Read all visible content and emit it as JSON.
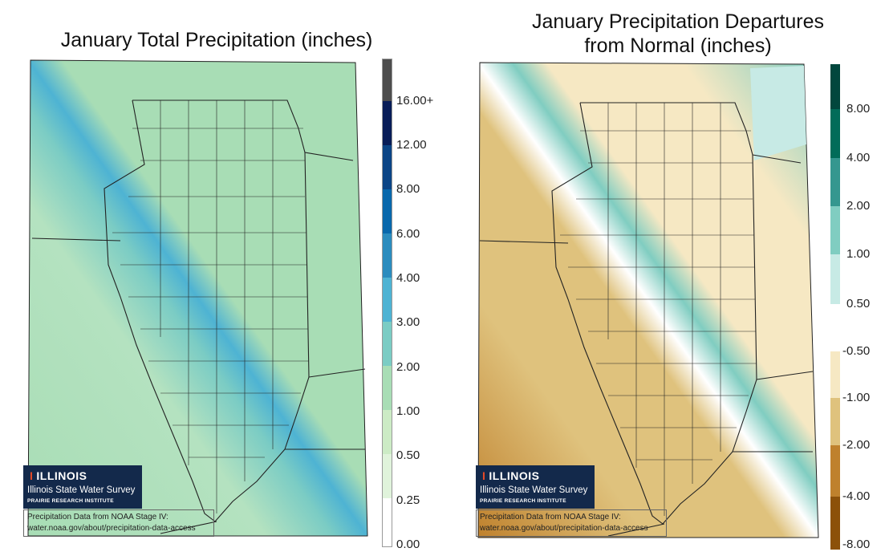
{
  "left_map": {
    "title": "January Total Precipitation (inches)",
    "legend": {
      "labels": [
        "16.00+",
        "12.00",
        "8.00",
        "6.00",
        "4.00",
        "3.00",
        "2.00",
        "1.00",
        "0.50",
        "0.25",
        "0.00"
      ],
      "colors": [
        "#4d4d4d",
        "#081d58",
        "#0b4586",
        "#0868ac",
        "#2b8cbe",
        "#4eb3d3",
        "#7bccc4",
        "#a8ddb5",
        "#ccebc5",
        "#e0f3db",
        "#ffffff"
      ]
    }
  },
  "right_map": {
    "title_line1": "January Precipitation Departures",
    "title_line2": "from Normal (inches)",
    "legend": {
      "labels": [
        "8.00",
        "4.00",
        "2.00",
        "1.00",
        "0.50",
        "-0.50",
        "-1.00",
        "-2.00",
        "-4.00",
        "-8.00"
      ],
      "colors": [
        "#01473d",
        "#016c59",
        "#35978f",
        "#80cdc1",
        "#c7eae5",
        "#ffffff",
        "#f6e8c3",
        "#dfc27d",
        "#bf812d",
        "#8c510a"
      ]
    }
  },
  "logo": {
    "mark": "I",
    "name": "ILLINOIS",
    "org": "Illinois State Water Survey",
    "institute": "PRAIRIE RESEARCH INSTITUTE"
  },
  "credit": {
    "line1": "Precipitation Data from NOAA Stage IV:",
    "line2": "water.noaa.gov/about/precipitation-data-access"
  }
}
